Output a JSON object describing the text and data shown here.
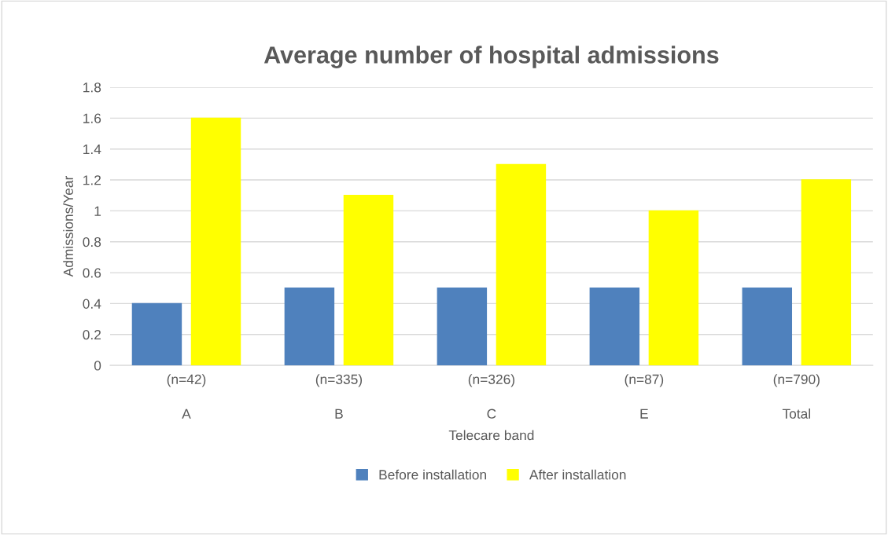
{
  "chart_data": {
    "type": "bar",
    "title": "Average number of hospital admissions",
    "xlabel": "Telecare band",
    "ylabel": "Admissions/Year",
    "categories": [
      "(n=42)\nA",
      "(n=335)\nB",
      "(n=326)\nC",
      "(n=87)\nE",
      "(n=790)\nTotal"
    ],
    "series": [
      {
        "name": "Before installation",
        "color": "#4f81bd",
        "values": [
          0.4,
          0.5,
          0.5,
          0.5,
          0.5
        ]
      },
      {
        "name": "After installation",
        "color": "#ffff00",
        "values": [
          1.6,
          1.1,
          1.3,
          1.0,
          1.2
        ]
      }
    ],
    "ylim": [
      0,
      1.8
    ],
    "yticks": [
      0,
      0.2,
      0.4,
      0.6,
      0.8,
      1,
      1.2,
      1.4,
      1.6,
      1.8
    ],
    "grid": "y",
    "legend": "bottom"
  }
}
